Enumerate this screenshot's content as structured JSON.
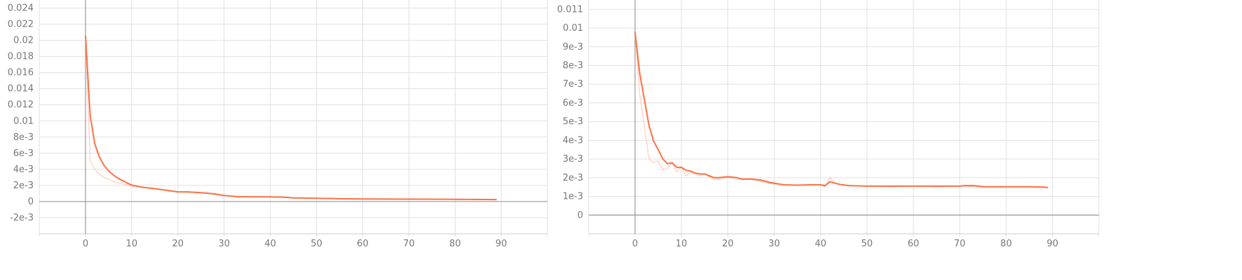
{
  "chart_data": [
    {
      "type": "line",
      "title": "",
      "xlabel": "",
      "ylabel": "",
      "grid": true,
      "xlim": [
        -10,
        100
      ],
      "ylim": [
        -4,
        25
      ],
      "x_ticks": [
        0,
        10,
        20,
        30,
        40,
        50,
        60,
        70,
        80,
        90
      ],
      "x_tick_labels": [
        "0",
        "10",
        "20",
        "30",
        "40",
        "50",
        "60",
        "70",
        "80",
        "90"
      ],
      "y_ticks": [
        -2,
        0,
        2,
        4,
        6,
        8,
        10,
        12,
        14,
        16,
        18,
        20,
        22,
        24
      ],
      "y_tick_labels": [
        "-2e-3",
        "0",
        "2e-3",
        "4e-3",
        "6e-3",
        "8e-3",
        "0.01",
        "0.012",
        "0.014",
        "0.016",
        "0.018",
        "0.02",
        "0.022",
        "0.024"
      ],
      "y_scale_note": "values in units of 1e-3",
      "colors": {
        "smoothed": "#ff7043",
        "raw": "#ffccbc",
        "axis": "#999999",
        "grid": "#e0e0e0"
      },
      "series": [
        {
          "role": "raw",
          "x": [
            0,
            1,
            2,
            3,
            4,
            5,
            6,
            8,
            10,
            15,
            20,
            25,
            30,
            35,
            40,
            45,
            50,
            55,
            60,
            70,
            80,
            89
          ],
          "values": [
            20.6,
            5.0,
            4.0,
            3.4,
            3.0,
            2.8,
            2.5,
            2.2,
            1.9,
            1.6,
            1.2,
            1.1,
            0.7,
            0.6,
            0.55,
            0.45,
            0.4,
            0.35,
            0.32,
            0.3,
            0.28,
            0.25
          ]
        },
        {
          "role": "smoothed",
          "x": [
            0,
            1,
            2,
            3,
            4,
            5,
            6,
            7,
            8,
            9,
            10,
            12,
            15,
            20,
            22,
            25,
            28,
            30,
            33,
            40,
            43,
            45,
            50,
            55,
            60,
            70,
            80,
            89
          ],
          "values": [
            20.6,
            10.7,
            7.2,
            5.5,
            4.5,
            3.8,
            3.3,
            2.9,
            2.6,
            2.3,
            2.05,
            1.8,
            1.6,
            1.2,
            1.2,
            1.1,
            0.95,
            0.75,
            0.6,
            0.58,
            0.55,
            0.45,
            0.4,
            0.35,
            0.32,
            0.3,
            0.28,
            0.25
          ]
        }
      ]
    },
    {
      "type": "line",
      "title": "",
      "xlabel": "",
      "ylabel": "",
      "grid": true,
      "xlim": [
        -10,
        100
      ],
      "ylim": [
        -1,
        11.5
      ],
      "x_ticks": [
        0,
        10,
        20,
        30,
        40,
        50,
        60,
        70,
        80,
        90
      ],
      "x_tick_labels": [
        "0",
        "10",
        "20",
        "30",
        "40",
        "50",
        "60",
        "70",
        "80",
        "90"
      ],
      "y_ticks": [
        0,
        1,
        2,
        3,
        4,
        5,
        6,
        7,
        8,
        9,
        10,
        11
      ],
      "y_tick_labels": [
        "0",
        "1e-3",
        "2e-3",
        "3e-3",
        "4e-3",
        "5e-3",
        "6e-3",
        "7e-3",
        "8e-3",
        "9e-3",
        "0.01",
        "0.011"
      ],
      "y_scale_note": "values in units of 1e-3",
      "colors": {
        "smoothed": "#ff7043",
        "raw": "#ffccbc",
        "axis": "#999999",
        "grid": "#e0e0e0"
      },
      "series": [
        {
          "role": "raw",
          "x": [
            0,
            1,
            2,
            3,
            4,
            5,
            6,
            7,
            8,
            9,
            10,
            11,
            12,
            13,
            14,
            15,
            17,
            20,
            25,
            30,
            35,
            40,
            41,
            42,
            43,
            45,
            50,
            55,
            60,
            65,
            70,
            75,
            80,
            85,
            89
          ],
          "values": [
            9.8,
            6.5,
            4.8,
            3.0,
            2.8,
            2.9,
            2.4,
            2.5,
            2.8,
            2.3,
            2.6,
            2.1,
            2.3,
            2.2,
            2.1,
            2.2,
            1.9,
            2.0,
            1.9,
            1.65,
            1.6,
            1.6,
            1.5,
            2.05,
            1.7,
            1.6,
            1.55,
            1.5,
            1.55,
            1.5,
            1.55,
            1.5,
            1.5,
            1.5,
            1.45
          ]
        },
        {
          "role": "smoothed",
          "x": [
            0,
            1,
            2,
            3,
            4,
            5,
            6,
            7,
            8,
            9,
            10,
            11,
            12,
            13,
            14,
            15,
            16,
            17,
            18,
            20,
            22,
            23,
            25,
            27,
            29,
            32,
            35,
            38,
            40,
            41,
            42,
            44,
            46,
            50,
            55,
            60,
            65,
            70,
            71,
            73,
            75,
            80,
            85,
            88,
            89
          ],
          "values": [
            9.8,
            7.6,
            6.2,
            4.8,
            3.95,
            3.5,
            3.0,
            2.75,
            2.8,
            2.55,
            2.55,
            2.4,
            2.35,
            2.25,
            2.2,
            2.2,
            2.1,
            2.0,
            2.0,
            2.05,
            2.0,
            1.92,
            1.93,
            1.88,
            1.75,
            1.62,
            1.6,
            1.62,
            1.62,
            1.58,
            1.78,
            1.65,
            1.58,
            1.55,
            1.55,
            1.55,
            1.55,
            1.55,
            1.58,
            1.58,
            1.52,
            1.52,
            1.52,
            1.5,
            1.48
          ]
        }
      ]
    }
  ]
}
